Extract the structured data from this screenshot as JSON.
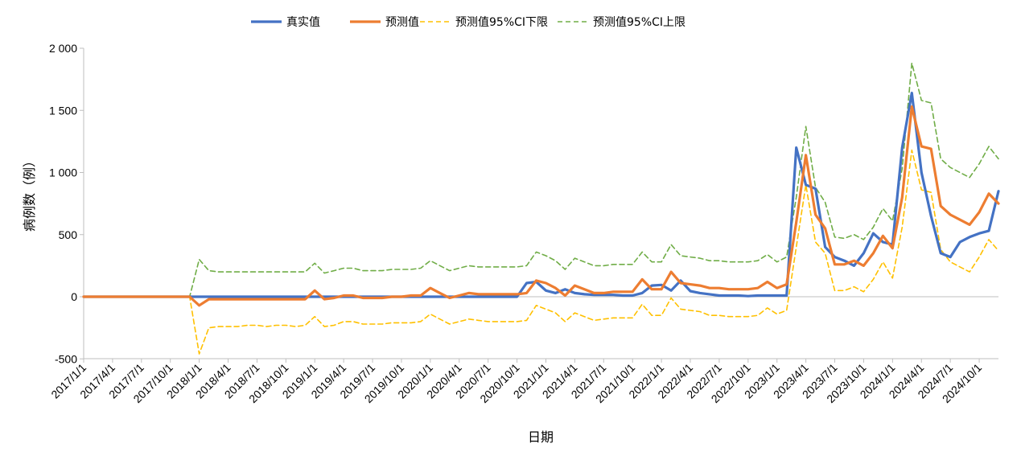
{
  "chart_data": {
    "type": "line",
    "title": "",
    "xlabel": "日期",
    "ylabel": "病例数（例）",
    "ylim": [
      -500,
      2000
    ],
    "yticks": [
      -500,
      0,
      500,
      1000,
      1500,
      2000
    ],
    "ytick_labels": [
      "-500",
      "0",
      "500",
      "1 000",
      "1 500",
      "2 000"
    ],
    "x_tick_labels": [
      "2017/1/1",
      "2017/4/1",
      "2017/7/1",
      "2017/10/1",
      "2018/1/1",
      "2018/4/1",
      "2018/7/1",
      "2018/10/1",
      "2019/1/1",
      "2019/4/1",
      "2019/7/1",
      "2019/10/1",
      "2020/1/1",
      "2020/4/1",
      "2020/7/1",
      "2020/10/1",
      "2021/1/1",
      "2021/4/1",
      "2021/7/1",
      "2021/10/1",
      "2022/1/1",
      "2022/4/1",
      "2022/7/1",
      "2022/10/1",
      "2023/1/1",
      "2023/4/1",
      "2023/7/1",
      "2023/10/1",
      "2024/1/1",
      "2024/4/1",
      "2024/7/1",
      "2024/10/1"
    ],
    "x_unit": "month",
    "x_start": "2017/1",
    "legend_position": "top-center",
    "grid": false,
    "series": [
      {
        "name": "真实值",
        "color": "#4472C4",
        "style": "solid",
        "values": [
          0,
          0,
          0,
          0,
          0,
          0,
          0,
          0,
          0,
          0,
          0,
          0,
          0,
          0,
          0,
          0,
          0,
          0,
          0,
          0,
          0,
          0,
          0,
          0,
          0,
          0,
          0,
          0,
          0,
          0,
          0,
          0,
          0,
          0,
          0,
          0,
          0,
          0,
          0,
          0,
          0,
          0,
          0,
          0,
          0,
          0,
          110,
          120,
          50,
          30,
          60,
          30,
          20,
          15,
          15,
          15,
          10,
          10,
          30,
          90,
          95,
          50,
          130,
          45,
          30,
          20,
          10,
          10,
          10,
          5,
          10,
          10,
          10,
          10,
          1200,
          900,
          870,
          400,
          320,
          290,
          250,
          350,
          510,
          440,
          420,
          1200,
          1640,
          1000,
          650,
          350,
          320,
          440,
          480,
          510,
          530,
          850
        ]
      },
      {
        "name": "预测值",
        "color": "#ED7D31",
        "style": "solid",
        "values": [
          0,
          0,
          0,
          0,
          0,
          0,
          0,
          0,
          0,
          0,
          0,
          0,
          -70,
          -20,
          -20,
          -20,
          -20,
          -20,
          -20,
          -20,
          -20,
          -20,
          -20,
          -20,
          50,
          -20,
          -10,
          10,
          10,
          -10,
          -10,
          -10,
          0,
          0,
          10,
          10,
          70,
          30,
          -10,
          10,
          30,
          20,
          20,
          20,
          20,
          20,
          30,
          130,
          110,
          70,
          10,
          90,
          60,
          30,
          30,
          40,
          40,
          40,
          140,
          60,
          60,
          200,
          110,
          100,
          90,
          70,
          70,
          60,
          60,
          60,
          70,
          120,
          70,
          100,
          600,
          1140,
          660,
          550,
          260,
          260,
          290,
          250,
          350,
          490,
          390,
          800,
          1530,
          1210,
          1190,
          730,
          660,
          620,
          580,
          680,
          830,
          750
        ]
      },
      {
        "name": "预测值95%CI下限",
        "color": "#FFC000",
        "style": "dashed",
        "values": [
          0,
          0,
          0,
          0,
          0,
          0,
          0,
          0,
          0,
          0,
          0,
          0,
          -460,
          -250,
          -240,
          -240,
          -240,
          -230,
          -230,
          -240,
          -230,
          -230,
          -240,
          -230,
          -160,
          -240,
          -230,
          -200,
          -200,
          -220,
          -220,
          -220,
          -210,
          -210,
          -210,
          -200,
          -140,
          -180,
          -220,
          -200,
          -180,
          -190,
          -200,
          -200,
          -200,
          -200,
          -190,
          -70,
          -100,
          -130,
          -200,
          -130,
          -160,
          -190,
          -180,
          -170,
          -170,
          -170,
          -60,
          -150,
          -150,
          -10,
          -100,
          -110,
          -120,
          -150,
          -150,
          -160,
          -160,
          -160,
          -150,
          -90,
          -140,
          -110,
          400,
          900,
          440,
          350,
          50,
          50,
          80,
          40,
          140,
          280,
          150,
          560,
          1180,
          860,
          840,
          380,
          280,
          240,
          200,
          320,
          460,
          370
        ]
      },
      {
        "name": "预测值95%CI上限",
        "color": "#70AD47",
        "style": "dashed",
        "values": [
          0,
          0,
          0,
          0,
          0,
          0,
          0,
          0,
          0,
          0,
          0,
          0,
          300,
          210,
          200,
          200,
          200,
          200,
          200,
          200,
          200,
          200,
          200,
          200,
          270,
          190,
          210,
          230,
          230,
          210,
          210,
          210,
          220,
          220,
          220,
          230,
          290,
          250,
          210,
          230,
          250,
          240,
          240,
          240,
          240,
          240,
          250,
          360,
          330,
          290,
          220,
          310,
          280,
          250,
          250,
          260,
          260,
          260,
          360,
          280,
          280,
          420,
          330,
          320,
          310,
          290,
          290,
          280,
          280,
          280,
          290,
          340,
          280,
          320,
          800,
          1370,
          880,
          760,
          480,
          470,
          500,
          460,
          560,
          710,
          610,
          1030,
          1880,
          1580,
          1560,
          1110,
          1040,
          1000,
          960,
          1070,
          1210,
          1110
        ]
      }
    ]
  }
}
